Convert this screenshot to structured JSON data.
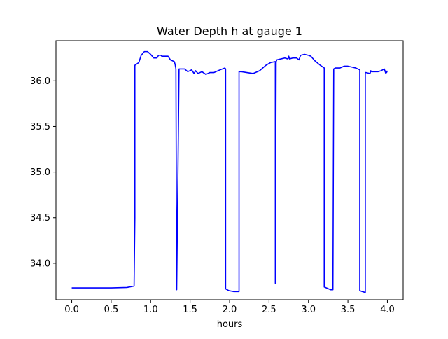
{
  "chart_data": {
    "type": "line",
    "title": "Water Depth h at gauge 1",
    "xlabel": "hours",
    "ylabel": "",
    "xlim": [
      -0.2,
      4.2
    ],
    "ylim": [
      33.6,
      36.44
    ],
    "xticks": [
      0.0,
      0.5,
      1.0,
      1.5,
      2.0,
      2.5,
      3.0,
      3.5,
      4.0
    ],
    "xtick_labels": [
      "0.0",
      "0.5",
      "1.0",
      "1.5",
      "2.0",
      "2.5",
      "3.0",
      "3.5",
      "4.0"
    ],
    "yticks": [
      34.0,
      34.5,
      35.0,
      35.5,
      36.0
    ],
    "ytick_labels": [
      "34.0",
      "34.5",
      "35.0",
      "35.5",
      "36.0"
    ],
    "grid": false,
    "legend": "none",
    "series": [
      {
        "color": "#0000ff",
        "x": [
          0.0,
          0.5,
          0.7,
          0.79,
          0.8,
          0.8,
          0.85,
          0.88,
          0.92,
          0.96,
          1.0,
          1.04,
          1.08,
          1.1,
          1.13,
          1.14,
          1.22,
          1.25,
          1.3,
          1.31,
          1.32,
          1.33,
          1.33,
          1.36,
          1.43,
          1.47,
          1.52,
          1.55,
          1.57,
          1.6,
          1.65,
          1.7,
          1.75,
          1.8,
          1.88,
          1.94,
          1.95,
          1.95,
          1.99,
          2.05,
          2.12,
          2.12,
          2.15,
          2.22,
          2.3,
          2.38,
          2.46,
          2.52,
          2.58,
          2.58,
          2.59,
          2.6,
          2.65,
          2.7,
          2.74,
          2.75,
          2.76,
          2.8,
          2.85,
          2.88,
          2.9,
          2.95,
          3.0,
          3.03,
          3.08,
          3.15,
          3.2,
          3.2,
          3.28,
          3.31,
          3.32,
          3.34,
          3.4,
          3.45,
          3.5,
          3.55,
          3.6,
          3.65,
          3.65,
          3.68,
          3.72,
          3.72,
          3.73,
          3.78,
          3.79,
          3.8,
          3.88,
          3.92,
          3.96,
          3.98,
          3.97,
          3.99,
          4.0
        ],
        "y": [
          33.73,
          33.73,
          33.735,
          33.75,
          34.5,
          36.17,
          36.2,
          36.28,
          36.32,
          36.32,
          36.29,
          36.25,
          36.25,
          36.28,
          36.28,
          36.27,
          36.27,
          36.23,
          36.21,
          36.18,
          36.13,
          33.72,
          33.71,
          36.13,
          36.13,
          36.1,
          36.12,
          36.08,
          36.11,
          36.08,
          36.1,
          36.07,
          36.09,
          36.09,
          36.12,
          36.14,
          36.13,
          33.72,
          33.7,
          33.69,
          33.69,
          36.1,
          36.1,
          36.09,
          36.08,
          36.11,
          36.17,
          36.2,
          36.21,
          33.78,
          36.21,
          36.23,
          36.24,
          36.25,
          36.24,
          36.27,
          36.24,
          36.25,
          36.25,
          36.23,
          36.28,
          36.29,
          36.28,
          36.27,
          36.22,
          36.17,
          36.14,
          33.74,
          33.71,
          33.71,
          36.13,
          36.14,
          36.14,
          36.16,
          36.16,
          36.15,
          36.14,
          36.12,
          33.7,
          33.69,
          33.68,
          36.09,
          36.09,
          36.08,
          36.11,
          36.1,
          36.1,
          36.11,
          36.13,
          36.08,
          36.11,
          36.09,
          36.11
        ]
      }
    ]
  }
}
